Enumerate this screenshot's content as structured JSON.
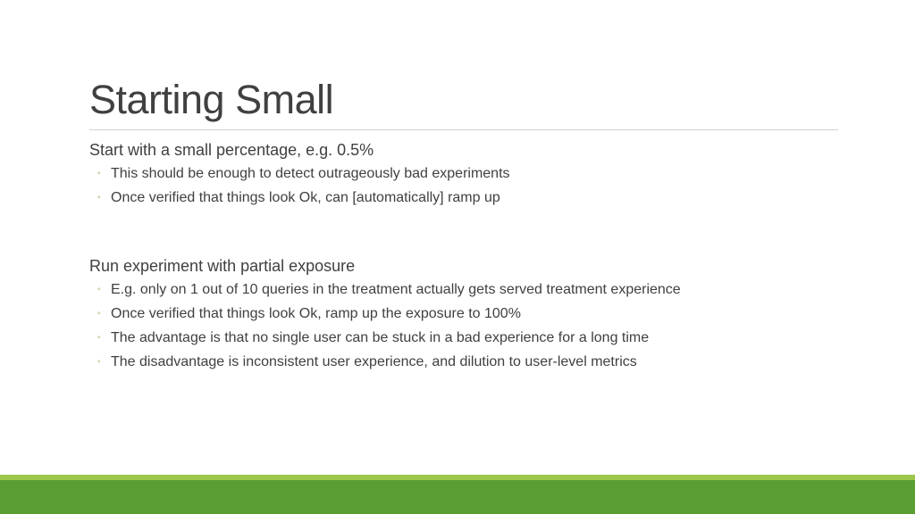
{
  "slide": {
    "title": "Starting Small",
    "sections": [
      {
        "heading": "Start with a small percentage, e.g. 0.5%",
        "bullets": [
          "This should be enough to detect outrageously bad experiments",
          "Once verified that things look Ok, can [automatically] ramp up"
        ]
      },
      {
        "heading": "Run experiment with partial exposure",
        "bullets": [
          "E.g. only on 1 out of 10 queries in the treatment actually gets served treatment experience",
          "Once verified that things look Ok, ramp up the exposure to 100%",
          "The advantage is that no single user can be stuck in a bad experience for a long time",
          "The disadvantage is inconsistent user experience, and dilution to user-level metrics"
        ]
      }
    ],
    "bullet_glyph": "◦"
  },
  "colors": {
    "text": "#404040",
    "rule": "#d2d2d2",
    "bullet": "#6c9e2c",
    "footer": "#5a9e32",
    "footer_accent": "#9bc84b"
  }
}
